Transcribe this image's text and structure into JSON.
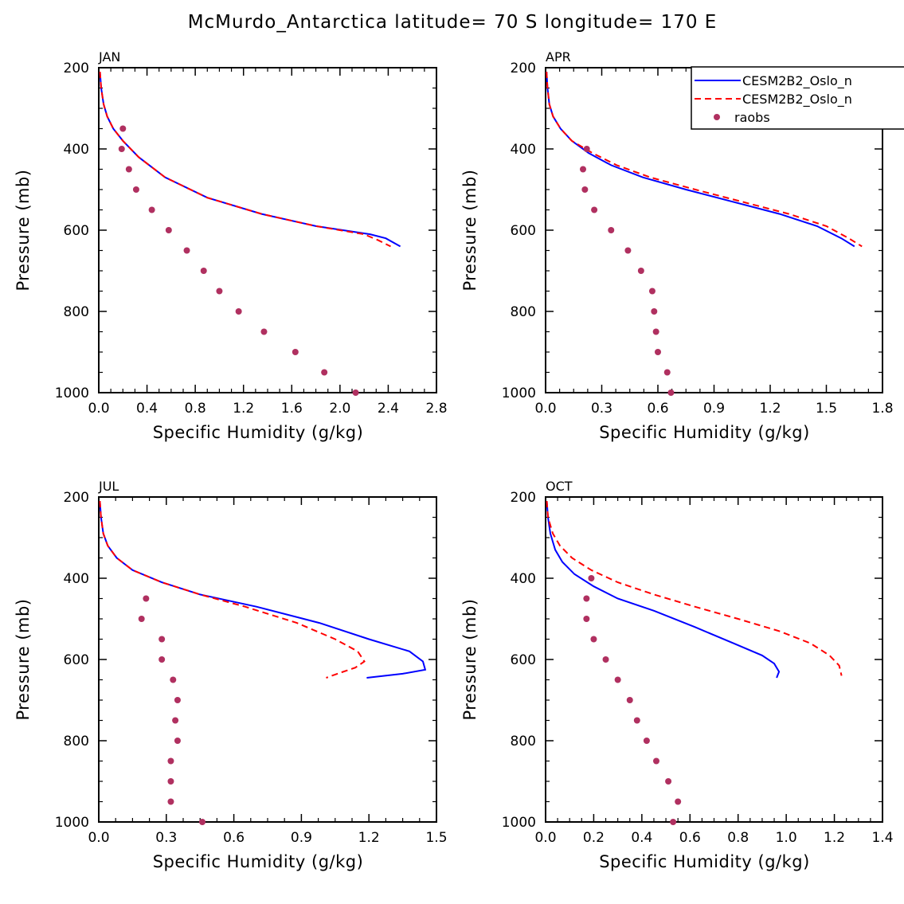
{
  "chart_data": {
    "title": "McMurdo_Antarctica  latitude= 70 S longitude= 170 E",
    "type": "line",
    "legend": {
      "placement": "top-right",
      "entries": [
        {
          "name": "CESM2B2_Oslo_n",
          "style": "solid",
          "color": "#0000ff"
        },
        {
          "name": "CESM2B2_Oslo_n",
          "style": "dashed",
          "color": "#ff0000"
        },
        {
          "name": "raobs",
          "style": "marker",
          "color": "#b03060"
        }
      ]
    },
    "panels": [
      {
        "label": "JAN",
        "xlabel": "Specific Humidity (g/kg)",
        "ylabel": "Pressure (mb)",
        "xlim": [
          0,
          2.8
        ],
        "xticks": [
          "0.0",
          "0.4",
          "0.8",
          "1.2",
          "1.6",
          "2.0",
          "2.4",
          "2.8"
        ],
        "xtick_values": [
          0,
          0.4,
          0.8,
          1.2,
          1.6,
          2.0,
          2.4,
          2.8
        ],
        "ylim": [
          200,
          1000
        ],
        "yticks": [
          "200",
          "400",
          "600",
          "800",
          "1000"
        ],
        "series": [
          {
            "name": "CESM2B2_Oslo_n (solid)",
            "color": "#0000ff",
            "x": [
              0.01,
              0.02,
              0.04,
              0.07,
              0.12,
              0.2,
              0.33,
              0.55,
              0.9,
              1.35,
              1.8,
              2.25,
              2.38,
              2.5
            ],
            "y": [
              210,
              250,
              290,
              320,
              350,
              380,
              420,
              470,
              520,
              560,
              590,
              610,
              620,
              640
            ]
          },
          {
            "name": "CESM2B2_Oslo_n (dashed)",
            "color": "#ff0000",
            "x": [
              0.01,
              0.02,
              0.04,
              0.07,
              0.12,
              0.2,
              0.33,
              0.55,
              0.9,
              1.35,
              1.8,
              2.2,
              2.32,
              2.42
            ],
            "y": [
              210,
              250,
              290,
              320,
              350,
              380,
              420,
              470,
              520,
              560,
              590,
              610,
              625,
              640
            ]
          },
          {
            "name": "raobs",
            "color": "#b03060",
            "x": [
              0.2,
              0.19,
              0.25,
              0.31,
              0.44,
              0.58,
              0.73,
              0.87,
              1.0,
              1.16,
              1.37,
              1.63,
              1.87,
              2.13
            ],
            "y": [
              350,
              400,
              450,
              500,
              550,
              600,
              650,
              700,
              750,
              800,
              850,
              900,
              950,
              1000
            ]
          }
        ]
      },
      {
        "label": "APR",
        "xlabel": "Specific Humidity (g/kg)",
        "ylabel": "Pressure (mb)",
        "xlim": [
          0,
          1.8
        ],
        "xticks": [
          "0.0",
          "0.3",
          "0.6",
          "0.9",
          "1.2",
          "1.5",
          "1.8"
        ],
        "xtick_values": [
          0,
          0.3,
          0.6,
          0.9,
          1.2,
          1.5,
          1.8
        ],
        "ylim": [
          200,
          1000
        ],
        "yticks": [
          "200",
          "400",
          "600",
          "800",
          "1000"
        ],
        "series": [
          {
            "name": "CESM2B2_Oslo_n (solid)",
            "color": "#0000ff",
            "x": [
              0.005,
              0.01,
              0.02,
              0.04,
              0.08,
              0.14,
              0.23,
              0.35,
              0.52,
              0.75,
              1.0,
              1.25,
              1.45,
              1.58,
              1.65
            ],
            "y": [
              210,
              250,
              290,
              320,
              350,
              380,
              410,
              440,
              470,
              500,
              530,
              560,
              590,
              620,
              640
            ]
          },
          {
            "name": "CESM2B2_Oslo_n (dashed)",
            "color": "#ff0000",
            "x": [
              0.005,
              0.01,
              0.02,
              0.04,
              0.08,
              0.14,
              0.25,
              0.38,
              0.56,
              0.8,
              1.05,
              1.3,
              1.5,
              1.62,
              1.69
            ],
            "y": [
              210,
              250,
              290,
              320,
              350,
              380,
              410,
              440,
              470,
              500,
              530,
              560,
              590,
              620,
              640
            ]
          },
          {
            "name": "raobs",
            "color": "#b03060",
            "x": [
              0.22,
              0.2,
              0.21,
              0.26,
              0.35,
              0.44,
              0.51,
              0.57,
              0.58,
              0.59,
              0.6,
              0.65,
              0.67
            ],
            "y": [
              400,
              450,
              500,
              550,
              600,
              650,
              700,
              750,
              800,
              850,
              900,
              950,
              1000
            ]
          }
        ]
      },
      {
        "label": "JUL",
        "xlabel": "Specific Humidity (g/kg)",
        "ylabel": "Pressure (mb)",
        "xlim": [
          0,
          1.5
        ],
        "xticks": [
          "0.0",
          "0.3",
          "0.6",
          "0.9",
          "1.2",
          "1.5"
        ],
        "xtick_values": [
          0,
          0.3,
          0.6,
          0.9,
          1.2,
          1.5
        ],
        "ylim": [
          200,
          1000
        ],
        "yticks": [
          "200",
          "400",
          "600",
          "800",
          "1000"
        ],
        "series": [
          {
            "name": "CESM2B2_Oslo_n (solid)",
            "color": "#0000ff",
            "x": [
              0.005,
              0.01,
              0.02,
              0.04,
              0.08,
              0.15,
              0.28,
              0.45,
              0.7,
              0.98,
              1.2,
              1.38,
              1.44,
              1.45,
              1.35,
              1.19
            ],
            "y": [
              210,
              250,
              290,
              320,
              350,
              380,
              410,
              440,
              470,
              510,
              550,
              580,
              605,
              625,
              635,
              645
            ]
          },
          {
            "name": "CESM2B2_Oslo_n (dashed)",
            "color": "#ff0000",
            "x": [
              0.005,
              0.01,
              0.02,
              0.04,
              0.08,
              0.15,
              0.28,
              0.45,
              0.65,
              0.88,
              1.05,
              1.15,
              1.18,
              1.14,
              1.06,
              1.01
            ],
            "y": [
              210,
              250,
              290,
              320,
              350,
              380,
              410,
              440,
              470,
              510,
              550,
              580,
              605,
              620,
              635,
              645
            ]
          },
          {
            "name": "raobs",
            "color": "#b03060",
            "x": [
              0.21,
              0.19,
              0.28,
              0.28,
              0.33,
              0.35,
              0.34,
              0.35,
              0.32,
              0.32,
              0.32,
              0.46
            ],
            "y": [
              450,
              500,
              550,
              600,
              650,
              700,
              750,
              800,
              850,
              900,
              950,
              1000
            ]
          }
        ]
      },
      {
        "label": "OCT",
        "xlabel": "Specific Humidity (g/kg)",
        "ylabel": "Pressure (mb)",
        "xlim": [
          0,
          1.4
        ],
        "xticks": [
          "0.0",
          "0.2",
          "0.4",
          "0.6",
          "0.8",
          "1.0",
          "1.2",
          "1.4"
        ],
        "xtick_values": [
          0,
          0.2,
          0.4,
          0.6,
          0.8,
          1.0,
          1.2,
          1.4
        ],
        "ylim": [
          200,
          1000
        ],
        "yticks": [
          "200",
          "400",
          "600",
          "800",
          "1000"
        ],
        "series": [
          {
            "name": "CESM2B2_Oslo_n (solid)",
            "color": "#0000ff",
            "x": [
              0.005,
              0.01,
              0.02,
              0.04,
              0.07,
              0.12,
              0.2,
              0.3,
              0.45,
              0.62,
              0.78,
              0.9,
              0.95,
              0.97,
              0.96
            ],
            "y": [
              210,
              250,
              290,
              330,
              360,
              390,
              420,
              450,
              480,
              520,
              560,
              590,
              610,
              630,
              645
            ]
          },
          {
            "name": "CESM2B2_Oslo_n (dashed)",
            "color": "#ff0000",
            "x": [
              0.005,
              0.01,
              0.03,
              0.06,
              0.11,
              0.19,
              0.3,
              0.45,
              0.62,
              0.8,
              0.97,
              1.1,
              1.18,
              1.22,
              1.23
            ],
            "y": [
              210,
              250,
              290,
              320,
              350,
              380,
              410,
              440,
              470,
              500,
              530,
              560,
              590,
              615,
              640
            ]
          },
          {
            "name": "raobs",
            "color": "#b03060",
            "x": [
              0.19,
              0.17,
              0.17,
              0.2,
              0.25,
              0.3,
              0.35,
              0.38,
              0.42,
              0.46,
              0.51,
              0.55,
              0.53
            ],
            "y": [
              400,
              450,
              500,
              550,
              600,
              650,
              700,
              750,
              800,
              850,
              900,
              950,
              1000
            ]
          }
        ]
      }
    ]
  }
}
